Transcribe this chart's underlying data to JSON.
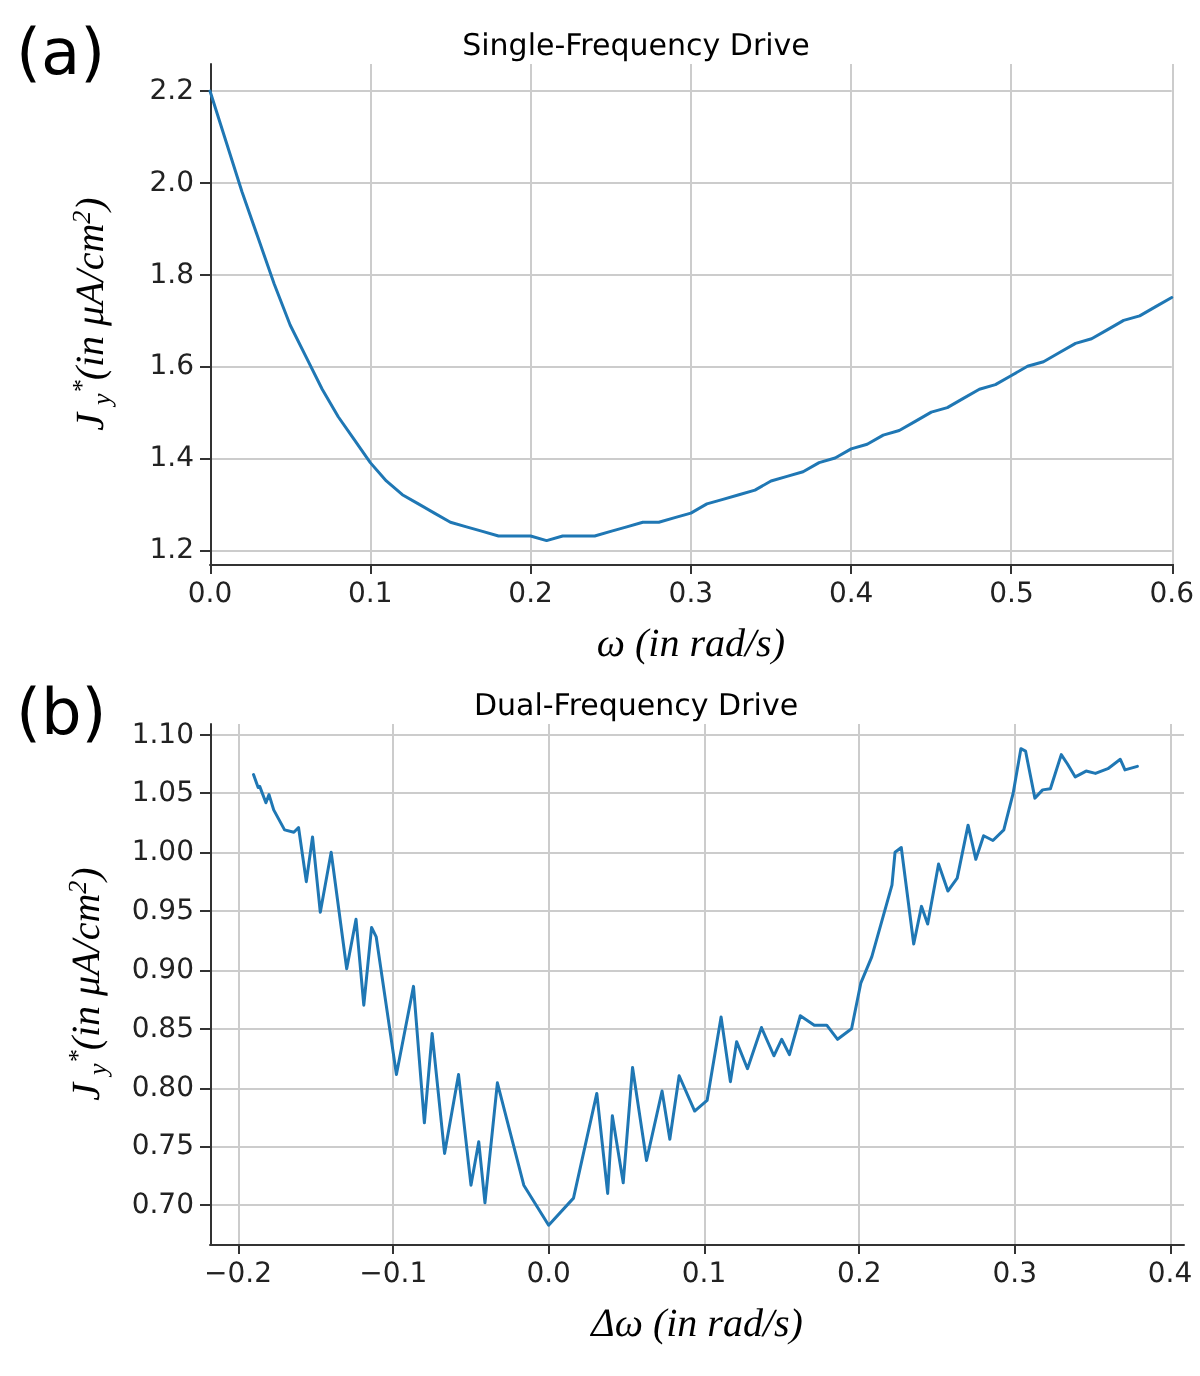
{
  "chart_data": [
    {
      "type": "line",
      "title": "Single-Frequency Drive",
      "xlabel": "ω (in rad/s)",
      "ylabel": "J$_{y}$$^{*}$(in μA/cm$^{2}$)",
      "annotations": [
        "(a)"
      ],
      "color": "#1f77b4",
      "grid": true,
      "marker": "none",
      "line_style": "solid",
      "x": [
        0,
        0.01,
        0.02,
        0.03,
        0.04,
        0.05,
        0.06,
        0.07,
        0.08,
        0.09,
        0.1,
        0.11,
        0.12,
        0.13,
        0.14,
        0.15,
        0.16,
        0.17,
        0.18,
        0.19,
        0.2,
        0.21,
        0.22,
        0.23,
        0.24,
        0.25,
        0.26,
        0.27,
        0.28,
        0.29,
        0.3,
        0.31,
        0.32,
        0.33,
        0.34,
        0.35,
        0.36,
        0.37,
        0.38,
        0.39,
        0.4,
        0.41,
        0.42,
        0.43,
        0.44,
        0.45,
        0.46,
        0.47,
        0.48,
        0.49,
        0.5,
        0.51,
        0.52,
        0.53,
        0.54,
        0.55,
        0.56,
        0.57,
        0.58,
        0.59,
        0.6
      ],
      "values": [
        2.2,
        2.09,
        1.98,
        1.88,
        1.78,
        1.69,
        1.62,
        1.55,
        1.49,
        1.44,
        1.39,
        1.35,
        1.32,
        1.3,
        1.28,
        1.26,
        1.25,
        1.24,
        1.23,
        1.23,
        1.23,
        1.22,
        1.23,
        1.23,
        1.23,
        1.24,
        1.25,
        1.26,
        1.26,
        1.27,
        1.28,
        1.3,
        1.31,
        1.32,
        1.33,
        1.35,
        1.36,
        1.37,
        1.39,
        1.4,
        1.42,
        1.43,
        1.45,
        1.46,
        1.48,
        1.5,
        1.51,
        1.53,
        1.55,
        1.56,
        1.58,
        1.6,
        1.61,
        1.63,
        1.65,
        1.66,
        1.68,
        1.7,
        1.71,
        1.73,
        1.75
      ],
      "xlim": [
        0,
        0.6
      ],
      "ylim": [
        1.169,
        2.259
      ],
      "xticks": [
        {
          "value": 0,
          "label": "0.0"
        },
        0.1,
        0.2,
        0.3,
        0.4,
        0.5,
        0.6
      ],
      "yticks": [
        1.2,
        1.4,
        1.6,
        1.8,
        {
          "value": 2,
          "label": "2.0"
        },
        2.2
      ]
    },
    {
      "type": "line",
      "title": "Dual-Frequency Drive",
      "xlabel": "Δω (in rad/s)",
      "ylabel": "J$_{y}$$^{*}$(in μA/cm$^{2}$)",
      "annotations": [
        "(b)"
      ],
      "color": "#1f77b4",
      "grid": true,
      "marker": "none",
      "line_style": "solid",
      "x": [
        -0.19,
        -0.187,
        -0.186,
        -0.182,
        -0.18,
        -0.177,
        -0.17,
        -0.164,
        -0.161,
        -0.156,
        -0.152,
        -0.147,
        -0.14,
        -0.13,
        -0.124,
        -0.119,
        -0.114,
        -0.111,
        -0.098,
        -0.087,
        -0.08,
        -0.075,
        -0.067,
        -0.058,
        -0.05,
        -0.045,
        -0.041,
        -0.033,
        -0.016,
        0,
        0.016,
        0.031,
        0.038,
        0.041,
        0.048,
        0.054,
        0.063,
        0.073,
        0.078,
        0.084,
        0.094,
        0.102,
        0.111,
        0.117,
        0.121,
        0.128,
        0.137,
        0.145,
        0.15,
        0.155,
        0.162,
        0.171,
        0.179,
        0.186,
        0.195,
        0.201,
        0.208,
        0.221,
        0.223,
        0.227,
        0.235,
        0.24,
        0.244,
        0.251,
        0.257,
        0.263,
        0.27,
        0.275,
        0.28,
        0.286,
        0.293,
        0.299,
        0.304,
        0.307,
        0.313,
        0.318,
        0.323,
        0.33,
        0.334,
        0.339,
        0.346,
        0.352,
        0.36,
        0.368,
        0.371,
        0.379
      ],
      "values": [
        1.066,
        1.055,
        1.056,
        1.042,
        1.049,
        1.036,
        1.019,
        1.017,
        1.021,
        0.975,
        1.013,
        0.949,
        1.0,
        0.901,
        0.943,
        0.87,
        0.936,
        0.928,
        0.811,
        0.886,
        0.77,
        0.846,
        0.744,
        0.811,
        0.717,
        0.754,
        0.702,
        0.804,
        0.717,
        0.683,
        0.706,
        0.795,
        0.71,
        0.776,
        0.719,
        0.817,
        0.738,
        0.797,
        0.756,
        0.81,
        0.78,
        0.789,
        0.86,
        0.805,
        0.839,
        0.816,
        0.851,
        0.827,
        0.841,
        0.828,
        0.861,
        0.853,
        0.853,
        0.841,
        0.85,
        0.889,
        0.911,
        0.972,
        1.0,
        1.004,
        0.922,
        0.954,
        0.939,
        0.99,
        0.967,
        0.978,
        1.023,
        0.994,
        1.014,
        1.01,
        1.019,
        1.05,
        1.088,
        1.086,
        1.046,
        1.053,
        1.054,
        1.083,
        1.075,
        1.064,
        1.069,
        1.067,
        1.071,
        1.079,
        1.07,
        1.073
      ],
      "xlim": [
        -0.218,
        0.409
      ],
      "ylim": [
        0.667,
        1.109
      ],
      "xticks": [
        {
          "value": -0.2,
          "label": "−0.2"
        },
        {
          "value": -0.1,
          "label": "−0.1"
        },
        {
          "value": 0,
          "label": "0.0"
        },
        0.1,
        0.2,
        0.3,
        0.4
      ],
      "yticks": [
        {
          "value": 0.7,
          "label": "0.70"
        },
        0.75,
        {
          "value": 0.8,
          "label": "0.80"
        },
        0.85,
        {
          "value": 0.9,
          "label": "0.90"
        },
        0.95,
        {
          "value": 1,
          "label": "1.00"
        },
        1.05,
        {
          "value": 1.1,
          "label": "1.10"
        }
      ]
    }
  ]
}
